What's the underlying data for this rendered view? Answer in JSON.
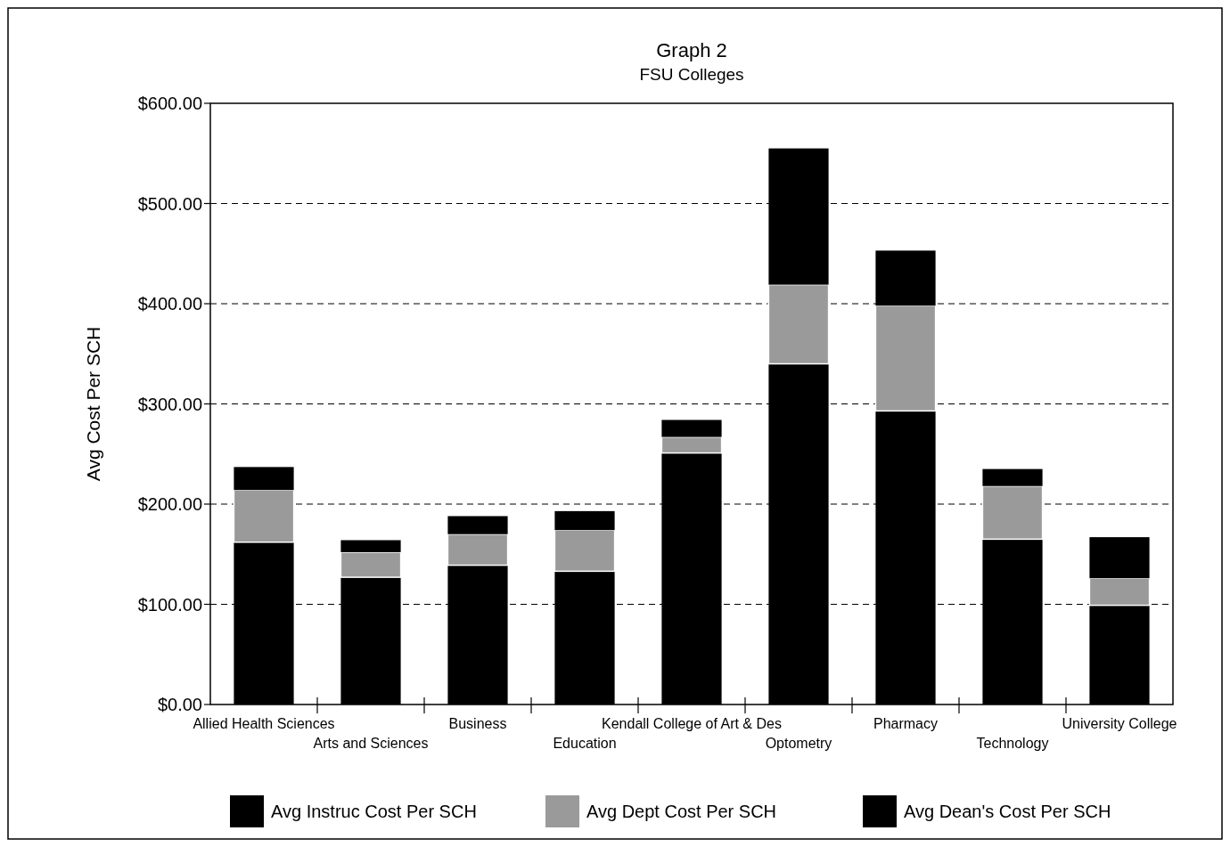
{
  "chart_data": {
    "type": "bar",
    "title": "Graph 2",
    "subtitle": "FSU Colleges",
    "ylabel": "Avg Cost Per SCH",
    "categories": [
      "Allied Health Sciences",
      "Arts and Sciences",
      "Business",
      "Education",
      "Kendall College of Art & Des",
      "Optometry",
      "Pharmacy",
      "Technology",
      "University College"
    ],
    "stacked": true,
    "series": [
      {
        "name": "Avg Instruc Cost Per SCH",
        "color": "#000000",
        "values": [
          162,
          127,
          139,
          133,
          251,
          340,
          293,
          165,
          99
        ]
      },
      {
        "name": "Avg Dept Cost Per SCH",
        "color": "#9a9a9a",
        "values": [
          52,
          25,
          31,
          41,
          16,
          79,
          105,
          53,
          27
        ]
      },
      {
        "name": "Avg Dean's Cost Per SCH",
        "color": "#000000",
        "values": [
          23,
          12,
          18,
          19,
          17,
          136,
          55,
          17,
          41
        ]
      }
    ],
    "ylim": [
      0,
      600
    ],
    "yticks": [
      {
        "value": 0,
        "label": "$0.00"
      },
      {
        "value": 100,
        "label": "$100.00"
      },
      {
        "value": 200,
        "label": "$200.00"
      },
      {
        "value": 300,
        "label": "$300.00"
      },
      {
        "value": 400,
        "label": "$400.00"
      },
      {
        "value": 500,
        "label": "$500.00"
      },
      {
        "value": 600,
        "label": "$600.00"
      }
    ],
    "grid": "y",
    "legend": "bottom"
  }
}
